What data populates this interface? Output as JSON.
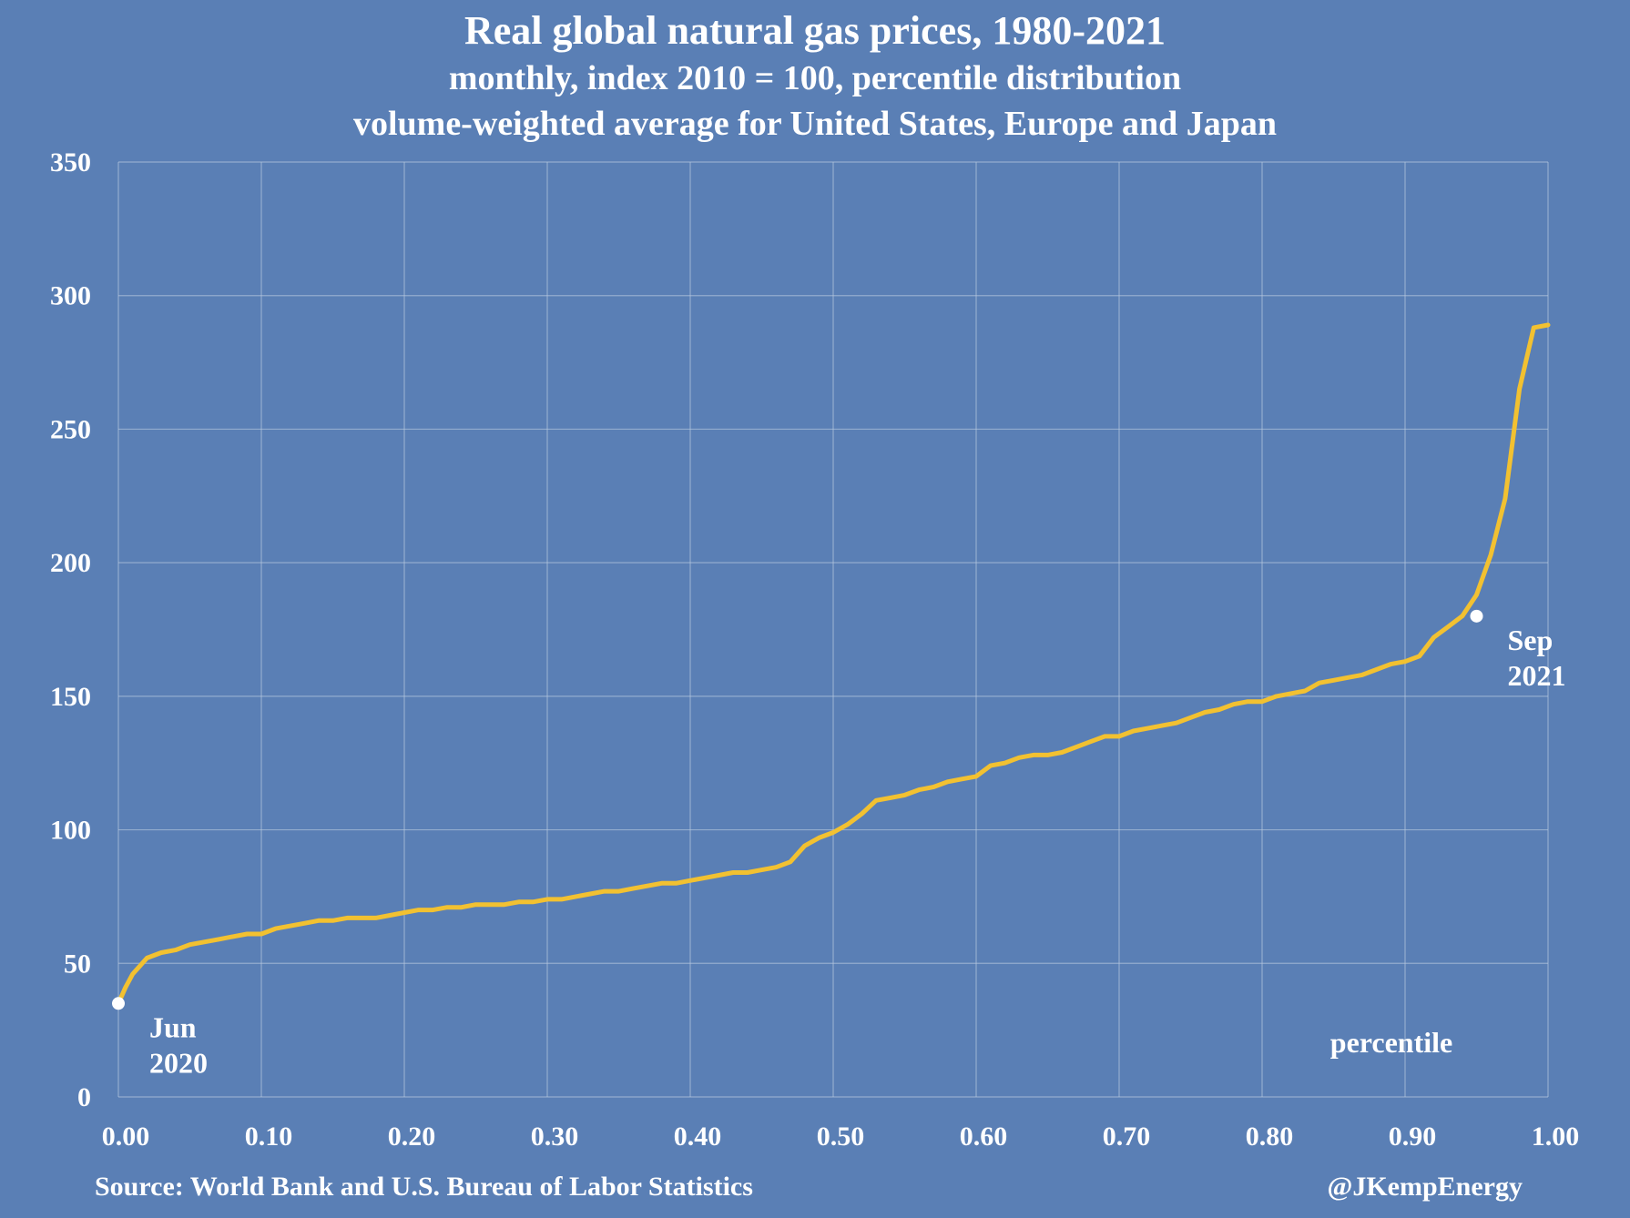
{
  "chart_data": {
    "type": "line",
    "title": "Real global natural gas prices, 1980-2021",
    "subtitle_lines": [
      "monthly, index 2010 = 100, percentile distribution",
      "volume-weighted average for United States, Europe and Japan"
    ],
    "xlabel": "percentile",
    "ylabel": "",
    "xlim": [
      0,
      1
    ],
    "ylim": [
      0,
      350
    ],
    "x_ticks": [
      "0.00",
      "0.10",
      "0.20",
      "0.30",
      "0.40",
      "0.50",
      "0.60",
      "0.70",
      "0.80",
      "0.90",
      "1.00"
    ],
    "y_ticks": [
      "0",
      "50",
      "100",
      "150",
      "200",
      "250",
      "300",
      "350"
    ],
    "grid": true,
    "line_color": "#f2c131",
    "background_color": "#5a7fb5",
    "series": [
      {
        "x": [
          0.0,
          0.005,
          0.01,
          0.015,
          0.02,
          0.03,
          0.04,
          0.05,
          0.06,
          0.07,
          0.08,
          0.09,
          0.1,
          0.11,
          0.12,
          0.13,
          0.14,
          0.15,
          0.16,
          0.17,
          0.18,
          0.19,
          0.2,
          0.21,
          0.22,
          0.23,
          0.24,
          0.25,
          0.26,
          0.27,
          0.28,
          0.29,
          0.3,
          0.31,
          0.32,
          0.33,
          0.34,
          0.35,
          0.36,
          0.37,
          0.38,
          0.39,
          0.4,
          0.41,
          0.42,
          0.43,
          0.44,
          0.45,
          0.46,
          0.47,
          0.48,
          0.49,
          0.5,
          0.51,
          0.52,
          0.53,
          0.54,
          0.55,
          0.56,
          0.57,
          0.58,
          0.59,
          0.6,
          0.61,
          0.62,
          0.63,
          0.64,
          0.65,
          0.66,
          0.67,
          0.68,
          0.69,
          0.7,
          0.71,
          0.72,
          0.73,
          0.74,
          0.75,
          0.76,
          0.77,
          0.78,
          0.79,
          0.8,
          0.81,
          0.82,
          0.83,
          0.84,
          0.85,
          0.86,
          0.87,
          0.88,
          0.89,
          0.9,
          0.91,
          0.92,
          0.93,
          0.94,
          0.95,
          0.96,
          0.97,
          0.98,
          0.99,
          1.0
        ],
        "y": [
          35,
          41,
          46,
          49,
          52,
          54,
          55,
          57,
          58,
          59,
          60,
          61,
          61,
          63,
          64,
          65,
          66,
          66,
          67,
          67,
          67,
          68,
          69,
          70,
          70,
          71,
          71,
          72,
          72,
          72,
          73,
          73,
          74,
          74,
          75,
          76,
          77,
          77,
          78,
          79,
          80,
          80,
          81,
          82,
          83,
          84,
          84,
          85,
          86,
          88,
          94,
          97,
          99,
          102,
          106,
          111,
          112,
          113,
          115,
          116,
          118,
          119,
          120,
          124,
          125,
          127,
          128,
          128,
          129,
          131,
          133,
          135,
          135,
          137,
          138,
          139,
          140,
          142,
          144,
          145,
          147,
          148,
          148,
          150,
          151,
          152,
          155,
          156,
          157,
          158,
          160,
          162,
          163,
          165,
          172,
          176,
          180,
          188,
          203,
          224,
          265,
          288,
          289
        ]
      }
    ],
    "annotations": [
      {
        "lines": [
          "Jun",
          "2020"
        ],
        "x": 0.0,
        "y": 35
      },
      {
        "lines": [
          "Sep",
          "2021"
        ],
        "x": 0.95,
        "y": 180
      }
    ]
  },
  "footer": {
    "source": "Source: World Bank and U.S. Bureau of Labor Statistics",
    "handle": "@JKempEnergy"
  }
}
